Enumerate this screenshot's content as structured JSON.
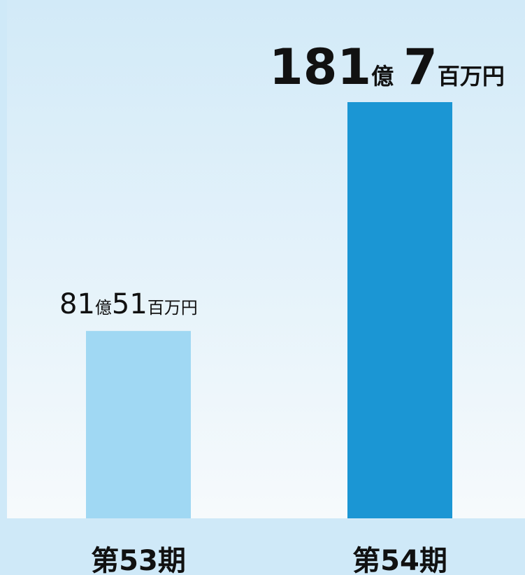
{
  "chart_data": {
    "type": "bar",
    "categories": [
      "第53期",
      "第54期"
    ],
    "values": [
      8151,
      18107
    ],
    "value_labels": [
      "81億51百万円",
      "181億7百万円"
    ],
    "colors": [
      "#a0d8f3",
      "#1b96d4"
    ]
  }
}
